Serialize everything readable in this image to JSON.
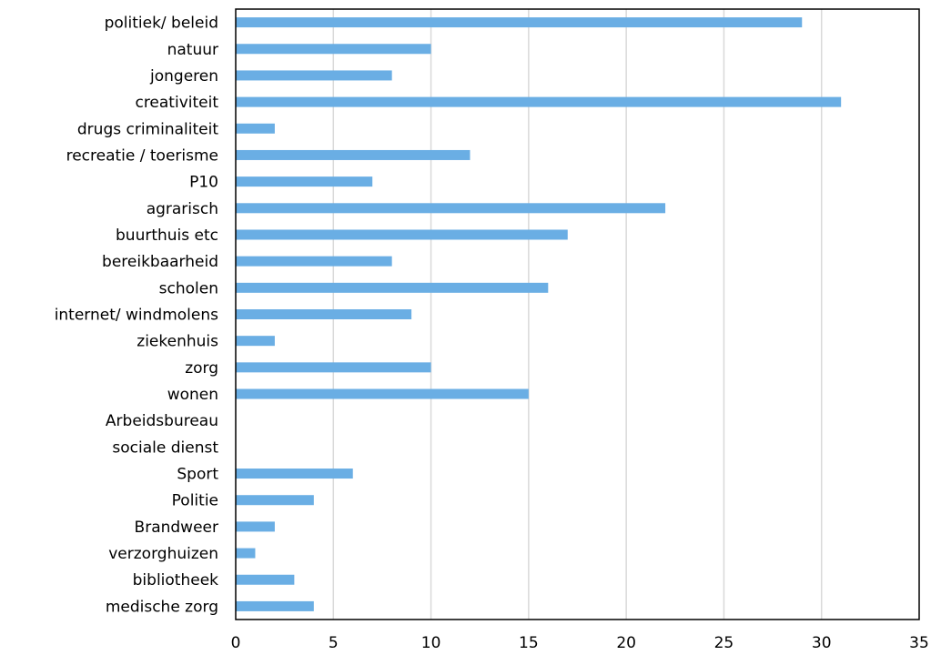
{
  "chart_data": {
    "type": "bar",
    "orientation": "horizontal",
    "title": "",
    "xlabel": "",
    "ylabel": "",
    "xlim": [
      0,
      35
    ],
    "x_ticks": [
      0,
      5,
      10,
      15,
      20,
      25,
      30,
      35
    ],
    "grid": "vertical",
    "legend": "none",
    "bar_color": "#6aaee4",
    "categories": [
      "politiek/ beleid",
      "natuur",
      "jongeren",
      "creativiteit",
      "drugs criminaliteit",
      "recreatie / toerisme",
      "P10",
      "agrarisch",
      "buurthuis etc",
      "bereikbaarheid",
      "scholen",
      "internet/ windmolens",
      "ziekenhuis",
      "zorg",
      "wonen",
      "Arbeidsbureau",
      "sociale dienst",
      "Sport",
      "Politie",
      "Brandweer",
      "verzorghuizen",
      "bibliotheek",
      "medische zorg"
    ],
    "values": [
      29,
      10,
      8,
      31,
      2,
      12,
      7,
      22,
      17,
      8,
      16,
      9,
      2,
      10,
      15,
      0,
      0,
      6,
      4,
      2,
      1,
      3,
      4
    ]
  }
}
